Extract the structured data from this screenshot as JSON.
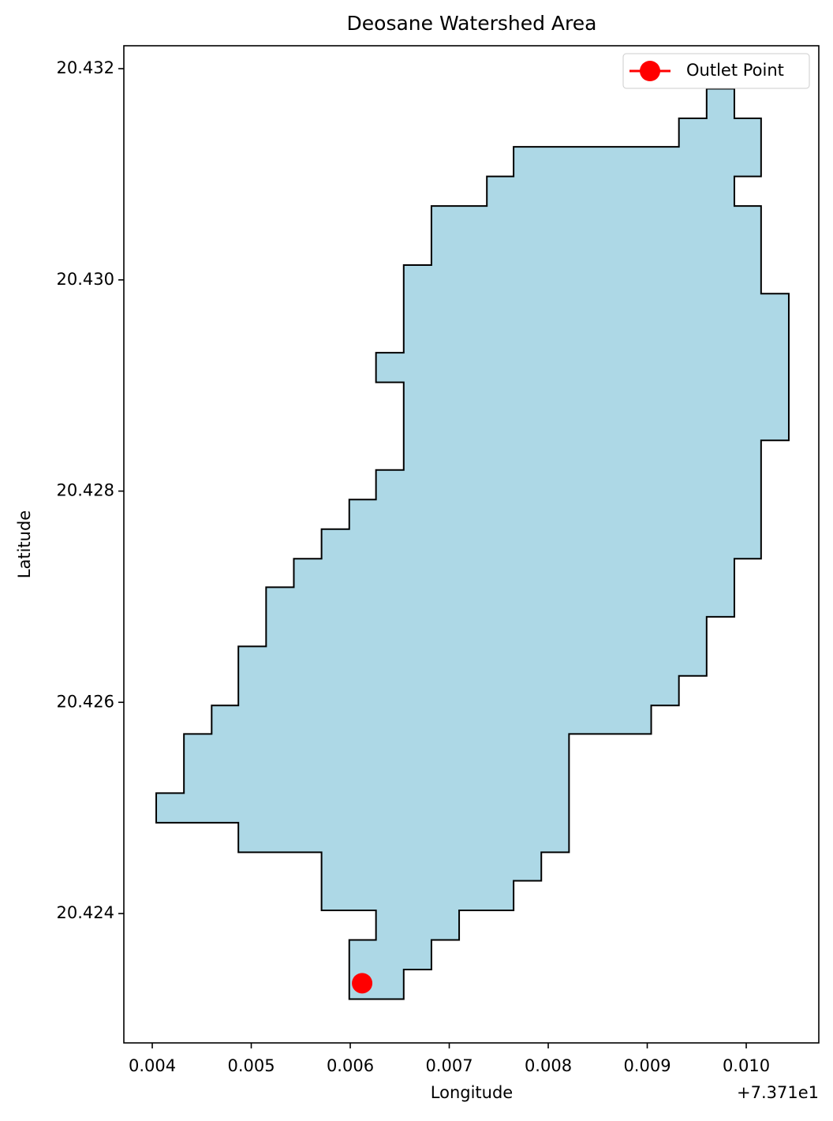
{
  "chart_data": {
    "type": "polygon",
    "title": "Deosane Watershed Area",
    "xlabel": "Longitude",
    "ylabel": "Latitude",
    "x_offset": "+7.371e1",
    "xlim": [
      0.003713,
      0.010733
    ],
    "ylim": [
      20.422775,
      20.432217
    ],
    "xticks": [
      0.004,
      0.005,
      0.006,
      0.007,
      0.008,
      0.009,
      {
        "value": 0.01,
        "label": "0.010"
      }
    ],
    "yticks": [
      20.424,
      20.426,
      20.428,
      {
        "value": 20.43,
        "label": "20.430"
      },
      20.432
    ],
    "grid": false,
    "legend": "upper right",
    "area": {
      "color": "#add8e6",
      "edgecolor": "#000000",
      "x": [
        0.0096,
        0.00988,
        0.00988,
        0.01015,
        0.01015,
        0.00988,
        0.00988,
        0.01015,
        0.01015,
        0.01043,
        0.01043,
        0.01015,
        0.01015,
        0.00988,
        0.00988,
        0.0096,
        0.0096,
        0.00932,
        0.00932,
        0.00904,
        0.00904,
        0.00821,
        0.00821,
        0.00793,
        0.00793,
        0.00765,
        0.00765,
        0.0071,
        0.0071,
        0.00682,
        0.00682,
        0.00654,
        0.00654,
        0.00599,
        0.00599,
        0.00626,
        0.00626,
        0.00571,
        0.00571,
        0.00487,
        0.00487,
        0.00404,
        0.00404,
        0.00432,
        0.00432,
        0.0046,
        0.0046,
        0.00487,
        0.00487,
        0.00515,
        0.00515,
        0.00543,
        0.00543,
        0.00571,
        0.00571,
        0.00599,
        0.00599,
        0.00626,
        0.00626,
        0.00654,
        0.00654,
        0.00626,
        0.00626,
        0.00654,
        0.00654,
        0.00682,
        0.00682,
        0.00738,
        0.00738,
        0.00765,
        0.00765,
        0.00932,
        0.00932,
        0.0096
      ],
      "y": [
        20.43181,
        20.43181,
        20.43153,
        20.43153,
        20.43098,
        20.43098,
        20.4307,
        20.4307,
        20.42987,
        20.42987,
        20.42848,
        20.42848,
        20.42736,
        20.42736,
        20.42681,
        20.42681,
        20.42625,
        20.42625,
        20.42597,
        20.42597,
        20.4257,
        20.4257,
        20.42458,
        20.42458,
        20.42431,
        20.42431,
        20.42403,
        20.42403,
        20.42375,
        20.42375,
        20.42347,
        20.42347,
        20.42319,
        20.42319,
        20.42375,
        20.42375,
        20.42403,
        20.42403,
        20.42458,
        20.42458,
        20.42486,
        20.42486,
        20.42514,
        20.42514,
        20.4257,
        20.4257,
        20.42597,
        20.42597,
        20.42653,
        20.42653,
        20.42709,
        20.42709,
        20.42736,
        20.42736,
        20.42764,
        20.42764,
        20.42792,
        20.42792,
        20.4282,
        20.4282,
        20.42903,
        20.42903,
        20.42931,
        20.42931,
        20.43014,
        20.43014,
        20.4307,
        20.4307,
        20.43098,
        20.43098,
        20.43126,
        20.43126,
        20.43153,
        20.43153
      ]
    },
    "points": [
      {
        "name": "Outlet Point",
        "color": "#ff0000",
        "x": [
          0.00612
        ],
        "y": [
          20.42334
        ]
      }
    ]
  }
}
